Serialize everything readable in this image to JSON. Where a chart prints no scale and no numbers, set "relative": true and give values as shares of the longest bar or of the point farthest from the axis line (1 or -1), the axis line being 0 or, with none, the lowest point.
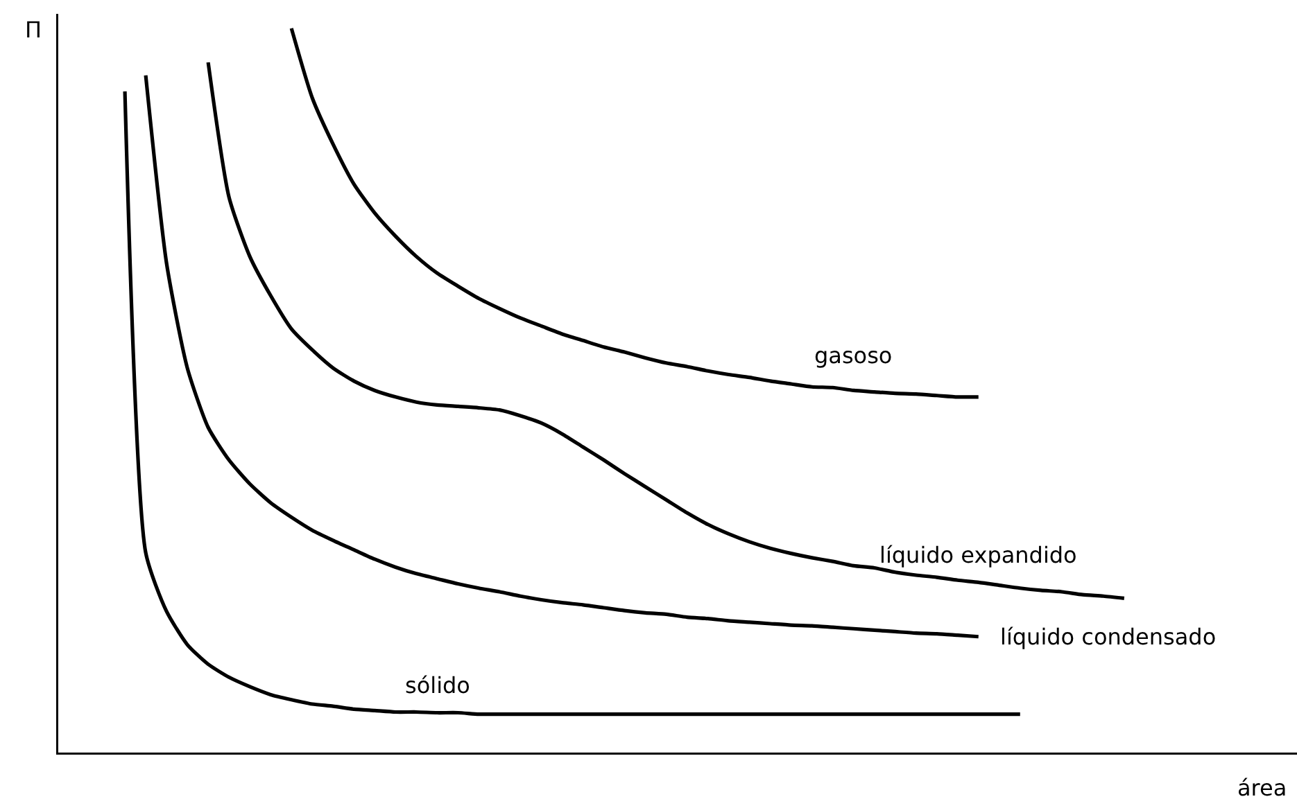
{
  "chart_data": {
    "type": "line",
    "relative": true,
    "xlabel": "área",
    "ylabel": "Π",
    "categories": [
      null,
      null,
      null,
      null,
      null,
      null,
      null,
      null,
      null,
      null,
      null,
      null,
      null,
      null,
      null,
      null,
      null,
      null,
      null,
      null,
      null,
      null,
      null,
      null,
      null,
      null,
      null,
      null,
      null,
      null,
      null,
      null,
      null,
      null,
      null,
      null,
      null,
      null,
      null,
      null,
      null,
      null,
      null,
      null,
      null,
      null,
      null,
      null,
      null,
      null,
      null,
      null
    ],
    "series": [
      {
        "name": "sólido",
        "color": "#000000",
        "values": [
          null,
          null,
          null,
          0.913,
          0.276,
          0.195,
          0.149,
          0.122,
          0.104,
          0.091,
          0.08,
          0.073,
          0.067,
          0.064,
          0.06,
          0.058,
          0.056,
          0.056,
          0.055,
          0.055,
          0.053,
          0.053,
          0.053,
          0.053,
          0.053,
          0.053,
          0.053,
          0.053,
          0.053,
          0.053,
          0.053,
          0.053,
          0.053,
          0.053,
          0.053,
          0.053,
          0.053,
          0.053,
          0.053,
          0.053,
          0.053,
          0.053,
          0.053,
          0.053,
          0.053,
          0.053,
          0.053,
          null,
          null,
          null,
          null,
          null
        ]
      },
      {
        "name": "líquido condensado",
        "color": "#000000",
        "values": [
          null,
          null,
          null,
          null,
          0.935,
          0.676,
          0.531,
          0.449,
          0.404,
          0.371,
          0.345,
          0.325,
          0.307,
          0.293,
          0.28,
          0.267,
          0.256,
          0.247,
          0.24,
          0.233,
          0.227,
          0.222,
          0.216,
          0.211,
          0.207,
          0.204,
          0.2,
          0.196,
          0.193,
          0.191,
          0.187,
          0.185,
          0.182,
          0.18,
          0.178,
          0.176,
          0.175,
          0.173,
          0.171,
          0.169,
          0.167,
          0.165,
          0.164,
          0.162,
          0.16,
          null,
          null,
          null,
          null,
          null,
          null,
          null
        ]
      },
      {
        "name": "líquido expandido",
        "color": "#000000",
        "values": [
          null,
          null,
          null,
          null,
          null,
          null,
          null,
          0.953,
          0.767,
          0.685,
          0.631,
          0.585,
          0.556,
          0.531,
          0.513,
          0.5,
          0.491,
          0.484,
          0.48,
          0.478,
          0.476,
          0.473,
          0.465,
          0.455,
          0.44,
          0.422,
          0.404,
          0.385,
          0.367,
          0.349,
          0.331,
          0.315,
          0.302,
          0.291,
          0.282,
          0.275,
          0.269,
          0.264,
          0.258,
          0.255,
          0.249,
          0.245,
          0.242,
          0.238,
          0.235,
          0.231,
          0.227,
          0.224,
          0.222,
          0.218,
          0.216,
          0.213
        ]
      },
      {
        "name": "gasoso",
        "color": "#000000",
        "values": [
          null,
          null,
          null,
          null,
          null,
          null,
          null,
          null,
          null,
          null,
          null,
          1,
          0.904,
          0.84,
          0.785,
          0.745,
          0.713,
          0.685,
          0.662,
          0.644,
          0.627,
          0.613,
          0.6,
          0.589,
          0.578,
          0.569,
          0.56,
          0.553,
          0.545,
          0.538,
          0.533,
          0.527,
          0.522,
          0.518,
          0.513,
          0.509,
          0.505,
          0.504,
          0.5,
          0.498,
          0.496,
          0.495,
          0.493,
          0.491,
          0.491,
          null,
          null,
          null,
          null,
          null,
          null,
          null
        ]
      }
    ]
  }
}
